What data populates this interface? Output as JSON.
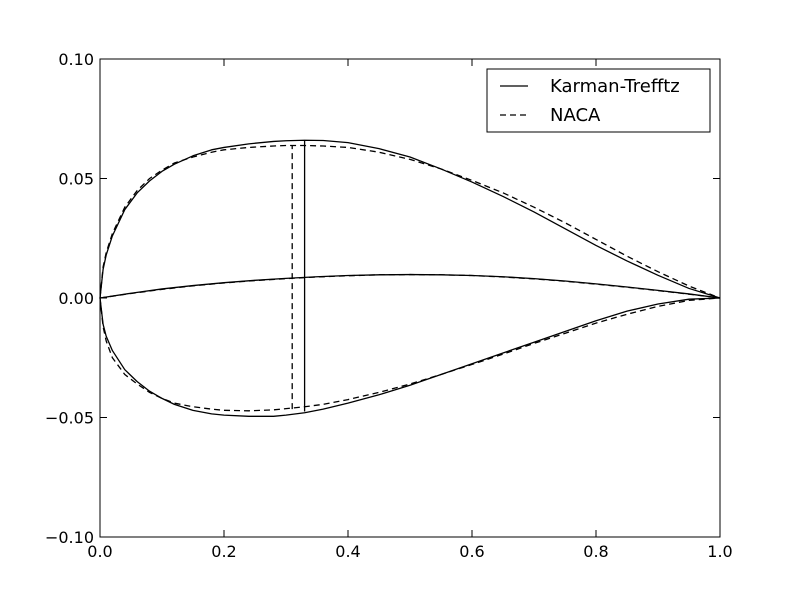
{
  "chart_data": {
    "type": "line",
    "title": "",
    "xlabel": "",
    "ylabel": "",
    "xlim": [
      0.0,
      1.0
    ],
    "ylim": [
      -0.1,
      0.1
    ],
    "xticks": [
      0.0,
      0.2,
      0.4,
      0.6,
      0.8,
      1.0
    ],
    "xtick_labels": [
      "0.0",
      "0.2",
      "0.4",
      "0.6",
      "0.8",
      "1.0"
    ],
    "yticks": [
      -0.1,
      -0.05,
      0.0,
      0.05,
      0.1
    ],
    "ytick_labels": [
      "−0.10",
      "−0.05",
      "0.00",
      "0.05",
      "0.10"
    ],
    "grid": false,
    "legend_position": "top-right",
    "series": [
      {
        "name": "Karman-Trefftz",
        "line_style": "solid",
        "color": "#000000",
        "upper": {
          "x": [
            0.0,
            0.005,
            0.01,
            0.02,
            0.04,
            0.06,
            0.08,
            0.1,
            0.12,
            0.15,
            0.18,
            0.2,
            0.24,
            0.28,
            0.3,
            0.33,
            0.36,
            0.4,
            0.45,
            0.5,
            0.55,
            0.6,
            0.65,
            0.7,
            0.75,
            0.8,
            0.85,
            0.9,
            0.95,
            1.0
          ],
          "y": [
            0.0,
            0.012,
            0.018,
            0.026,
            0.037,
            0.044,
            0.049,
            0.053,
            0.056,
            0.0595,
            0.062,
            0.063,
            0.0645,
            0.0655,
            0.0658,
            0.066,
            0.0659,
            0.065,
            0.0625,
            0.059,
            0.054,
            0.0485,
            0.0425,
            0.036,
            0.029,
            0.022,
            0.0155,
            0.0095,
            0.004,
            0.0
          ]
        },
        "lower": {
          "x": [
            0.0,
            0.005,
            0.01,
            0.02,
            0.04,
            0.06,
            0.08,
            0.1,
            0.12,
            0.15,
            0.18,
            0.2,
            0.24,
            0.28,
            0.3,
            0.33,
            0.36,
            0.4,
            0.45,
            0.5,
            0.55,
            0.6,
            0.65,
            0.7,
            0.75,
            0.8,
            0.85,
            0.9,
            0.95,
            1.0
          ],
          "y": [
            0.0,
            -0.011,
            -0.016,
            -0.022,
            -0.03,
            -0.035,
            -0.039,
            -0.042,
            -0.0445,
            -0.047,
            -0.0485,
            -0.049,
            -0.0495,
            -0.0495,
            -0.049,
            -0.048,
            -0.0465,
            -0.044,
            -0.0405,
            -0.0365,
            -0.032,
            -0.0275,
            -0.023,
            -0.0185,
            -0.014,
            -0.0095,
            -0.0055,
            -0.0025,
            -0.0005,
            0.0
          ]
        },
        "camber": {
          "x": [
            0.0,
            0.05,
            0.1,
            0.15,
            0.2,
            0.25,
            0.3,
            0.35,
            0.4,
            0.45,
            0.5,
            0.55,
            0.6,
            0.65,
            0.7,
            0.75,
            0.8,
            0.85,
            0.9,
            0.95,
            1.0
          ],
          "y": [
            0.0,
            0.002,
            0.0038,
            0.0052,
            0.0064,
            0.0074,
            0.0082,
            0.0089,
            0.0094,
            0.0097,
            0.0098,
            0.0097,
            0.0094,
            0.0089,
            0.0081,
            0.0071,
            0.0059,
            0.0046,
            0.0032,
            0.0017,
            0.0
          ]
        },
        "max_thickness_line": {
          "x": 0.33,
          "y": [
            -0.0475,
            0.066
          ]
        }
      },
      {
        "name": "NACA",
        "line_style": "dashed",
        "color": "#000000",
        "upper": {
          "x": [
            0.0,
            0.005,
            0.01,
            0.02,
            0.04,
            0.06,
            0.08,
            0.1,
            0.12,
            0.15,
            0.18,
            0.2,
            0.24,
            0.28,
            0.3,
            0.33,
            0.36,
            0.4,
            0.45,
            0.5,
            0.55,
            0.6,
            0.65,
            0.7,
            0.75,
            0.8,
            0.85,
            0.9,
            0.95,
            1.0
          ],
          "y": [
            0.0,
            0.013,
            0.019,
            0.027,
            0.038,
            0.045,
            0.05,
            0.0535,
            0.0565,
            0.059,
            0.061,
            0.062,
            0.063,
            0.0636,
            0.0638,
            0.0638,
            0.0636,
            0.063,
            0.061,
            0.058,
            0.054,
            0.0492,
            0.044,
            0.038,
            0.0315,
            0.0245,
            0.0175,
            0.011,
            0.005,
            0.0
          ]
        },
        "lower": {
          "x": [
            0.0,
            0.005,
            0.01,
            0.02,
            0.04,
            0.06,
            0.08,
            0.1,
            0.12,
            0.15,
            0.18,
            0.2,
            0.24,
            0.28,
            0.3,
            0.33,
            0.36,
            0.4,
            0.45,
            0.5,
            0.55,
            0.6,
            0.65,
            0.7,
            0.75,
            0.8,
            0.85,
            0.9,
            0.95,
            1.0
          ],
          "y": [
            0.0,
            -0.012,
            -0.018,
            -0.025,
            -0.032,
            -0.036,
            -0.0395,
            -0.042,
            -0.044,
            -0.0455,
            -0.0465,
            -0.047,
            -0.0472,
            -0.0468,
            -0.0463,
            -0.0455,
            -0.0445,
            -0.0425,
            -0.0395,
            -0.036,
            -0.032,
            -0.0278,
            -0.0235,
            -0.019,
            -0.0148,
            -0.0105,
            -0.0068,
            -0.0035,
            -0.001,
            0.0
          ]
        },
        "camber": {
          "x": [
            0.0,
            0.05,
            0.1,
            0.15,
            0.2,
            0.25,
            0.3,
            0.35,
            0.4,
            0.45,
            0.5,
            0.55,
            0.6,
            0.65,
            0.7,
            0.75,
            0.8,
            0.85,
            0.9,
            0.95,
            1.0
          ],
          "y": [
            0.0,
            0.0019,
            0.0036,
            0.0051,
            0.0063,
            0.0073,
            0.0081,
            0.0088,
            0.0093,
            0.0097,
            0.0098,
            0.0097,
            0.0094,
            0.0088,
            0.008,
            0.007,
            0.0058,
            0.0045,
            0.0031,
            0.0016,
            0.0
          ]
        },
        "max_thickness_line": {
          "x": 0.31,
          "y": [
            -0.0465,
            0.0638
          ]
        }
      }
    ]
  }
}
